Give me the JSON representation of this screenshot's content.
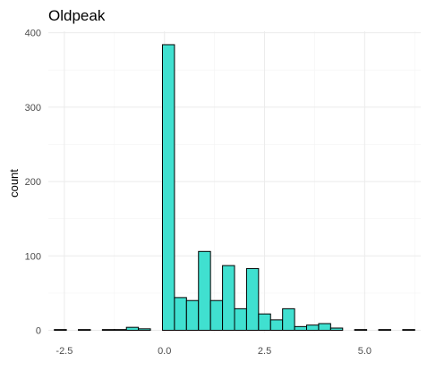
{
  "chart_data": {
    "type": "bar",
    "title": "Oldpeak",
    "xlabel": "",
    "ylabel": "count",
    "xlim": [
      -2.9,
      6.4
    ],
    "ylim": [
      -3,
      402
    ],
    "x_ticks": [
      -2.5,
      0.0,
      2.5,
      5.0
    ],
    "x_tick_labels": [
      "-2.5",
      "0.0",
      "2.5",
      "5.0"
    ],
    "y_ticks": [
      0,
      100,
      200,
      300,
      400
    ],
    "y_tick_labels": [
      "0",
      "100",
      "200",
      "300",
      "400"
    ],
    "bin_width": 0.3,
    "bin_centers": [
      -2.6,
      -2.3,
      -2.0,
      -1.7,
      -1.4,
      -1.1,
      -0.8,
      -0.5,
      -0.2,
      0.1,
      0.4,
      0.7,
      1.0,
      1.3,
      1.6,
      1.9,
      2.2,
      2.5,
      2.8,
      3.1,
      3.4,
      3.7,
      4.0,
      4.3,
      4.6,
      4.9,
      5.2,
      5.5,
      5.8,
      6.1
    ],
    "values": [
      1,
      0,
      1,
      0,
      1,
      1,
      4,
      2,
      0,
      384,
      44,
      40,
      106,
      40,
      87,
      29,
      83,
      22,
      14,
      29,
      5,
      7,
      9,
      3,
      0,
      1,
      0,
      1,
      0,
      1
    ],
    "grid": true,
    "bar_fill": "#40E0D0",
    "bar_stroke": "#000000",
    "legend": "none"
  }
}
